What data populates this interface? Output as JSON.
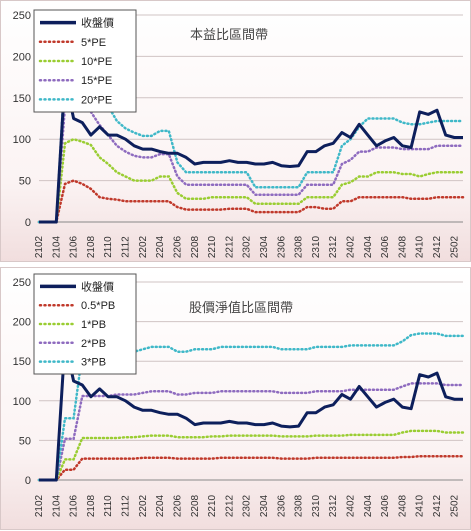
{
  "chart_data": [
    {
      "type": "line",
      "title": "本益比區間帶",
      "xlabel": "",
      "ylabel": "",
      "ylim": [
        0,
        250
      ],
      "yticks": [
        0,
        50,
        100,
        150,
        200,
        250
      ],
      "x": [
        "2102",
        "2103",
        "2104",
        "2105",
        "2106",
        "2107",
        "2108",
        "2109",
        "2110",
        "2111",
        "2112",
        "2201",
        "2202",
        "2203",
        "2204",
        "2205",
        "2206",
        "2207",
        "2208",
        "2209",
        "2210",
        "2211",
        "2212",
        "2301",
        "2302",
        "2303",
        "2304",
        "2305",
        "2306",
        "2307",
        "2308",
        "2309",
        "2310",
        "2311",
        "2312",
        "2401",
        "2402",
        "2403",
        "2404",
        "2405",
        "2406",
        "2407",
        "2408",
        "2409",
        "2410",
        "2411",
        "2412",
        "2501",
        "2502",
        "2503"
      ],
      "xticks": [
        "2102",
        "2104",
        "2106",
        "2108",
        "2110",
        "2112",
        "2202",
        "2204",
        "2206",
        "2208",
        "2210",
        "2212",
        "2302",
        "2304",
        "2306",
        "2308",
        "2310",
        "2312",
        "2402",
        "2404",
        "2406",
        "2408",
        "2410",
        "2412",
        "2502"
      ],
      "legend_position": "top-left",
      "grid": true,
      "series": [
        {
          "name": "收盤價",
          "color": "#0d1f5c",
          "style": "solid",
          "values": [
            0,
            0,
            0,
            175,
            125,
            120,
            105,
            115,
            105,
            105,
            100,
            92,
            88,
            88,
            85,
            83,
            83,
            78,
            70,
            72,
            72,
            72,
            74,
            72,
            72,
            70,
            70,
            72,
            68,
            67,
            68,
            85,
            85,
            92,
            95,
            108,
            102,
            118,
            105,
            92,
            98,
            102,
            92,
            90,
            133,
            130,
            135,
            105,
            102,
            102
          ]
        },
        {
          "name": "5*PE",
          "color": "#c0392b",
          "style": "dotted",
          "values": [
            0,
            0,
            0,
            46,
            50,
            46,
            40,
            30,
            28,
            27,
            25,
            25,
            25,
            25,
            25,
            25,
            18,
            15,
            15,
            15,
            15,
            15,
            16,
            16,
            16,
            12,
            12,
            12,
            12,
            12,
            12,
            18,
            18,
            16,
            16,
            25,
            25,
            30,
            30,
            30,
            30,
            30,
            30,
            28,
            28,
            28,
            30,
            30,
            30,
            30
          ]
        },
        {
          "name": "10*PE",
          "color": "#9acd32",
          "style": "dotted",
          "values": [
            0,
            0,
            0,
            95,
            100,
            97,
            93,
            78,
            70,
            60,
            55,
            50,
            50,
            50,
            55,
            55,
            35,
            28,
            28,
            28,
            30,
            30,
            30,
            30,
            30,
            22,
            22,
            22,
            22,
            22,
            22,
            30,
            30,
            30,
            30,
            45,
            48,
            55,
            55,
            60,
            60,
            60,
            58,
            58,
            55,
            58,
            60,
            60,
            60,
            60
          ]
        },
        {
          "name": "15*PE",
          "color": "#8e6bbf",
          "style": "dotted",
          "values": [
            0,
            0,
            0,
            140,
            150,
            140,
            133,
            117,
            105,
            92,
            85,
            80,
            78,
            78,
            82,
            82,
            55,
            45,
            45,
            45,
            45,
            45,
            45,
            45,
            45,
            33,
            33,
            33,
            33,
            33,
            33,
            45,
            45,
            45,
            45,
            70,
            75,
            85,
            85,
            90,
            90,
            90,
            88,
            88,
            88,
            88,
            92,
            92,
            92,
            92
          ]
        },
        {
          "name": "20*PE",
          "color": "#3fb8c8",
          "style": "dotted",
          "values": [
            0,
            0,
            0,
            185,
            195,
            185,
            175,
            155,
            140,
            122,
            113,
            108,
            104,
            104,
            110,
            110,
            72,
            60,
            60,
            60,
            60,
            60,
            60,
            60,
            60,
            42,
            42,
            42,
            42,
            42,
            42,
            60,
            60,
            60,
            60,
            92,
            100,
            115,
            125,
            125,
            125,
            125,
            120,
            118,
            118,
            120,
            122,
            122,
            122,
            122
          ]
        }
      ]
    },
    {
      "type": "line",
      "title": "股價淨值比區間帶",
      "xlabel": "",
      "ylabel": "",
      "ylim": [
        0,
        250
      ],
      "yticks": [
        0,
        50,
        100,
        150,
        200,
        250
      ],
      "x": [
        "2102",
        "2103",
        "2104",
        "2105",
        "2106",
        "2107",
        "2108",
        "2109",
        "2110",
        "2111",
        "2112",
        "2201",
        "2202",
        "2203",
        "2204",
        "2205",
        "2206",
        "2207",
        "2208",
        "2209",
        "2210",
        "2211",
        "2212",
        "2301",
        "2302",
        "2303",
        "2304",
        "2305",
        "2306",
        "2307",
        "2308",
        "2309",
        "2310",
        "2311",
        "2312",
        "2401",
        "2402",
        "2403",
        "2404",
        "2405",
        "2406",
        "2407",
        "2408",
        "2409",
        "2410",
        "2411",
        "2412",
        "2501",
        "2502",
        "2503"
      ],
      "xticks": [
        "2102",
        "2104",
        "2106",
        "2108",
        "2110",
        "2112",
        "2202",
        "2204",
        "2206",
        "2208",
        "2210",
        "2212",
        "2302",
        "2304",
        "2306",
        "2308",
        "2310",
        "2312",
        "2402",
        "2404",
        "2406",
        "2408",
        "2410",
        "2412",
        "2502"
      ],
      "legend_position": "top-left",
      "grid": true,
      "series": [
        {
          "name": "收盤價",
          "color": "#0d1f5c",
          "style": "solid",
          "values": [
            0,
            0,
            0,
            175,
            125,
            120,
            105,
            115,
            105,
            105,
            100,
            92,
            88,
            88,
            85,
            83,
            83,
            78,
            70,
            72,
            72,
            72,
            74,
            72,
            72,
            70,
            70,
            72,
            68,
            67,
            68,
            85,
            85,
            92,
            95,
            108,
            102,
            118,
            105,
            92,
            98,
            102,
            92,
            90,
            133,
            130,
            135,
            105,
            102,
            102
          ]
        },
        {
          "name": "0.5*PB",
          "color": "#c0392b",
          "style": "dotted",
          "values": [
            0,
            0,
            0,
            13,
            13,
            27,
            27,
            27,
            27,
            27,
            27,
            27,
            28,
            28,
            28,
            28,
            27,
            27,
            27,
            27,
            27,
            28,
            28,
            28,
            28,
            28,
            28,
            28,
            27,
            27,
            27,
            27,
            28,
            28,
            28,
            28,
            28,
            28,
            28,
            28,
            28,
            28,
            29,
            29,
            30,
            30,
            30,
            30,
            30,
            30
          ]
        },
        {
          "name": "1*PB",
          "color": "#9acd32",
          "style": "dotted",
          "values": [
            0,
            0,
            0,
            26,
            26,
            53,
            53,
            53,
            53,
            53,
            54,
            54,
            55,
            56,
            56,
            56,
            54,
            54,
            54,
            54,
            55,
            55,
            56,
            56,
            56,
            56,
            56,
            56,
            55,
            55,
            55,
            55,
            56,
            56,
            56,
            56,
            57,
            57,
            57,
            57,
            57,
            57,
            60,
            62,
            62,
            62,
            62,
            60,
            60,
            60
          ]
        },
        {
          "name": "2*PB",
          "color": "#8e6bbf",
          "style": "dotted",
          "values": [
            0,
            0,
            0,
            52,
            52,
            106,
            106,
            106,
            106,
            108,
            108,
            108,
            110,
            112,
            112,
            112,
            108,
            108,
            110,
            110,
            110,
            112,
            112,
            112,
            112,
            112,
            112,
            112,
            110,
            110,
            110,
            110,
            112,
            112,
            112,
            112,
            114,
            114,
            114,
            114,
            114,
            114,
            118,
            122,
            122,
            122,
            122,
            120,
            120,
            120
          ]
        },
        {
          "name": "3*PB",
          "color": "#3fb8c8",
          "style": "dotted",
          "values": [
            0,
            0,
            0,
            78,
            78,
            160,
            160,
            160,
            160,
            162,
            162,
            162,
            165,
            168,
            168,
            168,
            162,
            162,
            165,
            165,
            165,
            168,
            168,
            168,
            168,
            168,
            168,
            168,
            165,
            165,
            165,
            165,
            168,
            168,
            168,
            168,
            170,
            170,
            170,
            170,
            170,
            170,
            175,
            183,
            185,
            185,
            185,
            182,
            182,
            182
          ]
        }
      ]
    }
  ]
}
